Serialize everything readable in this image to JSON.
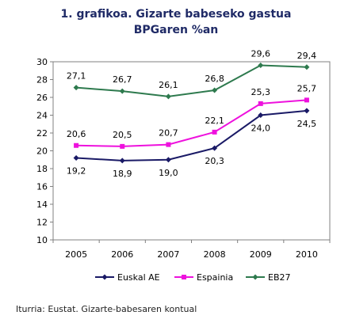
{
  "chart_data": {
    "type": "line",
    "title_line1": "1. grafikoa. Gizarte babeseko gastua",
    "title_line2": "BPGaren %an",
    "categories": [
      "2005",
      "2006",
      "2007",
      "2008",
      "2009",
      "2010"
    ],
    "ylim": [
      10,
      30
    ],
    "yticks": [
      "10",
      "12",
      "14",
      "16",
      "18",
      "20",
      "22",
      "24",
      "26",
      "28",
      "30"
    ],
    "grid": false,
    "legend_position": "bottom",
    "series": [
      {
        "name": "Euskal AE",
        "color": "#1a1a66",
        "marker": "diamond",
        "values": [
          19.2,
          18.9,
          19.0,
          20.3,
          24.0,
          24.5
        ],
        "labels": [
          "19,2",
          "18,9",
          "19,0",
          "20,3",
          "24,0",
          "24,5"
        ],
        "label_position": "below"
      },
      {
        "name": "Espainia",
        "color": "#ee11dd",
        "marker": "square",
        "values": [
          20.6,
          20.5,
          20.7,
          22.1,
          25.3,
          25.7
        ],
        "labels": [
          "20,6",
          "20,5",
          "20,7",
          "22,1",
          "25,3",
          "25,7"
        ],
        "label_position": "above"
      },
      {
        "name": "EB27",
        "color": "#2e7a4e",
        "marker": "diamond",
        "values": [
          27.1,
          26.7,
          26.1,
          26.8,
          29.6,
          29.4
        ],
        "labels": [
          "27,1",
          "26,7",
          "26,1",
          "26,8",
          "29,6",
          "29,4"
        ],
        "label_position": "above"
      }
    ]
  },
  "source": "Iturria: Eustat. Gizarte-babesaren kontual"
}
